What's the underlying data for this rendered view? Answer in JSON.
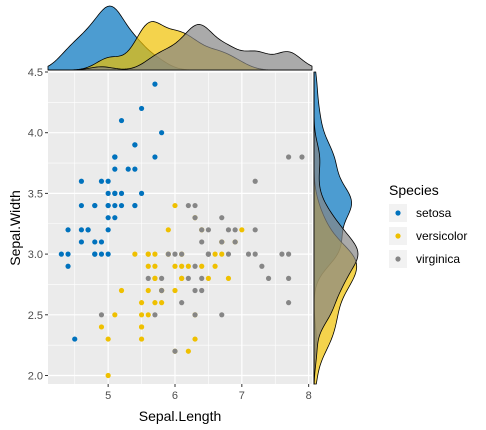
{
  "chart_data": {
    "type": "scatter",
    "title": "",
    "xlabel": "Sepal.Length",
    "ylabel": "Sepal.Width",
    "xlim": [
      4.1,
      8.05
    ],
    "ylim": [
      1.93,
      4.5
    ],
    "x_ticks": [
      5,
      6,
      7,
      8
    ],
    "y_ticks": [
      2.0,
      2.5,
      3.0,
      3.5,
      4.0,
      4.5
    ],
    "y_tick_labels": [
      "2.0",
      "2.5",
      "3.0",
      "3.5",
      "4.0",
      "4.5"
    ],
    "grid": true,
    "legend": {
      "title": "Species",
      "placement": "right"
    },
    "marginals": {
      "top": "density of x by species",
      "right": "density of y by species"
    },
    "series": [
      {
        "name": "setosa",
        "color": "#0072BD",
        "points": [
          [
            4.3,
            3.0
          ],
          [
            4.4,
            3.0
          ],
          [
            4.4,
            2.9
          ],
          [
            4.4,
            3.2
          ],
          [
            4.5,
            2.3
          ],
          [
            4.6,
            3.1
          ],
          [
            4.6,
            3.4
          ],
          [
            4.6,
            3.6
          ],
          [
            4.6,
            3.2
          ],
          [
            4.7,
            3.2
          ],
          [
            4.7,
            3.2
          ],
          [
            4.8,
            3.4
          ],
          [
            4.8,
            3.0
          ],
          [
            4.8,
            3.4
          ],
          [
            4.8,
            3.1
          ],
          [
            4.8,
            3.0
          ],
          [
            4.9,
            3.0
          ],
          [
            4.9,
            3.1
          ],
          [
            4.9,
            3.6
          ],
          [
            5.0,
            3.6
          ],
          [
            5.0,
            3.4
          ],
          [
            5.0,
            3.0
          ],
          [
            5.0,
            3.4
          ],
          [
            5.0,
            3.2
          ],
          [
            5.0,
            3.5
          ],
          [
            5.0,
            3.3
          ],
          [
            5.1,
            3.5
          ],
          [
            5.1,
            3.5
          ],
          [
            5.1,
            3.8
          ],
          [
            5.1,
            3.7
          ],
          [
            5.1,
            3.3
          ],
          [
            5.1,
            3.4
          ],
          [
            5.1,
            3.8
          ],
          [
            5.1,
            3.8
          ],
          [
            5.2,
            3.5
          ],
          [
            5.2,
            3.4
          ],
          [
            5.2,
            4.1
          ],
          [
            5.3,
            3.7
          ],
          [
            5.4,
            3.9
          ],
          [
            5.4,
            3.7
          ],
          [
            5.4,
            3.9
          ],
          [
            5.4,
            3.4
          ],
          [
            5.4,
            3.4
          ],
          [
            5.5,
            4.2
          ],
          [
            5.5,
            3.5
          ],
          [
            5.7,
            4.4
          ],
          [
            5.7,
            3.8
          ],
          [
            5.8,
            4.0
          ]
        ]
      },
      {
        "name": "versicolor",
        "color": "#EFC000",
        "points": [
          [
            4.9,
            2.4
          ],
          [
            5.0,
            2.0
          ],
          [
            5.0,
            2.3
          ],
          [
            5.1,
            2.5
          ],
          [
            5.2,
            2.7
          ],
          [
            5.4,
            3.0
          ],
          [
            5.5,
            2.3
          ],
          [
            5.5,
            2.4
          ],
          [
            5.5,
            2.4
          ],
          [
            5.5,
            2.5
          ],
          [
            5.5,
            2.6
          ],
          [
            5.6,
            2.9
          ],
          [
            5.6,
            3.0
          ],
          [
            5.6,
            2.5
          ],
          [
            5.6,
            3.0
          ],
          [
            5.6,
            2.7
          ],
          [
            5.7,
            2.8
          ],
          [
            5.7,
            2.6
          ],
          [
            5.7,
            3.0
          ],
          [
            5.7,
            2.9
          ],
          [
            5.7,
            2.8
          ],
          [
            5.8,
            2.7
          ],
          [
            5.8,
            2.7
          ],
          [
            5.8,
            2.6
          ],
          [
            5.9,
            3.0
          ],
          [
            5.9,
            3.2
          ],
          [
            6.0,
            2.2
          ],
          [
            6.0,
            2.9
          ],
          [
            6.0,
            2.7
          ],
          [
            6.0,
            3.4
          ],
          [
            6.1,
            2.8
          ],
          [
            6.1,
            2.8
          ],
          [
            6.1,
            3.0
          ],
          [
            6.1,
            2.9
          ],
          [
            6.2,
            2.2
          ],
          [
            6.2,
            2.9
          ],
          [
            6.3,
            2.3
          ],
          [
            6.3,
            2.5
          ],
          [
            6.3,
            3.3
          ],
          [
            6.4,
            3.2
          ],
          [
            6.4,
            2.9
          ],
          [
            6.5,
            2.8
          ],
          [
            6.6,
            2.9
          ],
          [
            6.6,
            3.0
          ],
          [
            6.7,
            3.1
          ],
          [
            6.7,
            3.0
          ],
          [
            6.8,
            2.8
          ],
          [
            6.9,
            3.1
          ],
          [
            7.0,
            3.2
          ]
        ]
      },
      {
        "name": "virginica",
        "color": "#868686",
        "points": [
          [
            4.9,
            2.5
          ],
          [
            5.6,
            2.8
          ],
          [
            5.7,
            2.5
          ],
          [
            5.8,
            2.7
          ],
          [
            5.8,
            2.8
          ],
          [
            5.9,
            3.0
          ],
          [
            6.0,
            2.2
          ],
          [
            6.0,
            3.0
          ],
          [
            6.1,
            3.0
          ],
          [
            6.1,
            2.6
          ],
          [
            6.2,
            2.8
          ],
          [
            6.2,
            3.4
          ],
          [
            6.3,
            3.3
          ],
          [
            6.3,
            2.9
          ],
          [
            6.3,
            2.5
          ],
          [
            6.3,
            2.7
          ],
          [
            6.3,
            3.4
          ],
          [
            6.4,
            2.7
          ],
          [
            6.4,
            3.2
          ],
          [
            6.4,
            2.8
          ],
          [
            6.4,
            3.1
          ],
          [
            6.5,
            3.0
          ],
          [
            6.5,
            3.2
          ],
          [
            6.5,
            3.0
          ],
          [
            6.5,
            3.0
          ],
          [
            6.7,
            2.5
          ],
          [
            6.7,
            3.3
          ],
          [
            6.7,
            3.1
          ],
          [
            6.8,
            3.0
          ],
          [
            6.8,
            3.2
          ],
          [
            6.9,
            3.2
          ],
          [
            6.9,
            3.1
          ],
          [
            7.1,
            3.0
          ],
          [
            7.2,
            3.6
          ],
          [
            7.2,
            3.2
          ],
          [
            7.2,
            3.0
          ],
          [
            7.3,
            2.9
          ],
          [
            7.4,
            2.8
          ],
          [
            7.6,
            3.0
          ],
          [
            7.7,
            3.8
          ],
          [
            7.7,
            2.6
          ],
          [
            7.7,
            2.8
          ],
          [
            7.7,
            3.0
          ],
          [
            7.9,
            3.8
          ]
        ]
      }
    ]
  }
}
